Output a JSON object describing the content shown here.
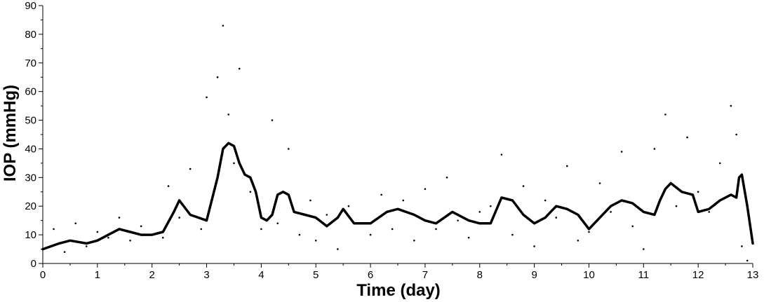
{
  "chart_data": {
    "type": "scatter",
    "xlabel": "Time (day)",
    "ylabel": "IOP (mmHg)",
    "xlim": [
      0,
      13
    ],
    "ylim": [
      0,
      90
    ],
    "x_ticks": [
      0,
      1,
      2,
      3,
      4,
      5,
      6,
      7,
      8,
      9,
      10,
      11,
      12,
      13
    ],
    "y_ticks": [
      0,
      10,
      20,
      30,
      40,
      50,
      60,
      70,
      80,
      90
    ],
    "grid": false,
    "legend": "none",
    "series": [
      {
        "kind": "scatter",
        "x": [
          0.0,
          0.2,
          0.4,
          0.6,
          0.8,
          1.0,
          1.2,
          1.4,
          1.6,
          1.8,
          2.0,
          2.2,
          2.3,
          2.5,
          2.7,
          2.9,
          3.0,
          3.2,
          3.3,
          3.4,
          3.5,
          3.6,
          3.8,
          4.0,
          4.2,
          4.3,
          4.5,
          4.7,
          4.9,
          5.0,
          5.2,
          5.4,
          5.6,
          5.8,
          6.0,
          6.2,
          6.4,
          6.6,
          6.8,
          7.0,
          7.2,
          7.4,
          7.6,
          7.8,
          8.0,
          8.2,
          8.4,
          8.6,
          8.8,
          9.0,
          9.2,
          9.4,
          9.6,
          9.8,
          10.0,
          10.2,
          10.4,
          10.6,
          10.8,
          11.0,
          11.2,
          11.4,
          11.6,
          11.8,
          12.0,
          12.2,
          12.4,
          12.6,
          12.7,
          12.8,
          12.9
        ],
        "y": [
          5,
          12,
          4,
          14,
          6,
          11,
          9,
          16,
          8,
          13,
          10,
          9,
          27,
          16,
          33,
          12,
          58,
          65,
          83,
          52,
          35,
          68,
          25,
          12,
          50,
          14,
          40,
          10,
          22,
          8,
          17,
          5,
          20,
          14,
          10,
          24,
          12,
          22,
          8,
          26,
          12,
          30,
          15,
          9,
          18,
          20,
          38,
          10,
          27,
          6,
          22,
          16,
          34,
          8,
          11,
          28,
          18,
          39,
          13,
          5,
          40,
          52,
          20,
          44,
          25,
          18,
          35,
          55,
          45,
          6,
          1
        ]
      },
      {
        "kind": "line",
        "x": [
          0.0,
          0.3,
          0.5,
          0.8,
          1.0,
          1.2,
          1.4,
          1.6,
          1.8,
          2.0,
          2.2,
          2.4,
          2.5,
          2.7,
          3.0,
          3.2,
          3.3,
          3.4,
          3.5,
          3.6,
          3.7,
          3.8,
          3.9,
          4.0,
          4.1,
          4.2,
          4.3,
          4.4,
          4.5,
          4.6,
          4.8,
          5.0,
          5.2,
          5.4,
          5.5,
          5.7,
          6.0,
          6.3,
          6.5,
          6.8,
          7.0,
          7.2,
          7.5,
          7.8,
          8.0,
          8.2,
          8.4,
          8.6,
          8.8,
          9.0,
          9.2,
          9.4,
          9.6,
          9.8,
          10.0,
          10.2,
          10.4,
          10.6,
          10.8,
          11.0,
          11.2,
          11.3,
          11.4,
          11.5,
          11.7,
          11.9,
          12.0,
          12.2,
          12.4,
          12.6,
          12.7,
          12.75,
          12.8,
          12.9,
          13.0
        ],
        "y": [
          5,
          7,
          8,
          7,
          8,
          10,
          12,
          11,
          10,
          10,
          11,
          18,
          22,
          17,
          15,
          30,
          40,
          42,
          41,
          35,
          31,
          30,
          25,
          16,
          15,
          17,
          24,
          25,
          24,
          18,
          17,
          16,
          13,
          16,
          19,
          14,
          14,
          18,
          19,
          17,
          15,
          14,
          18,
          15,
          14,
          14,
          23,
          22,
          17,
          14,
          16,
          20,
          19,
          17,
          12,
          16,
          20,
          22,
          21,
          18,
          17,
          22,
          26,
          28,
          25,
          24,
          18,
          19,
          22,
          24,
          23,
          30,
          31,
          20,
          7
        ]
      }
    ]
  }
}
